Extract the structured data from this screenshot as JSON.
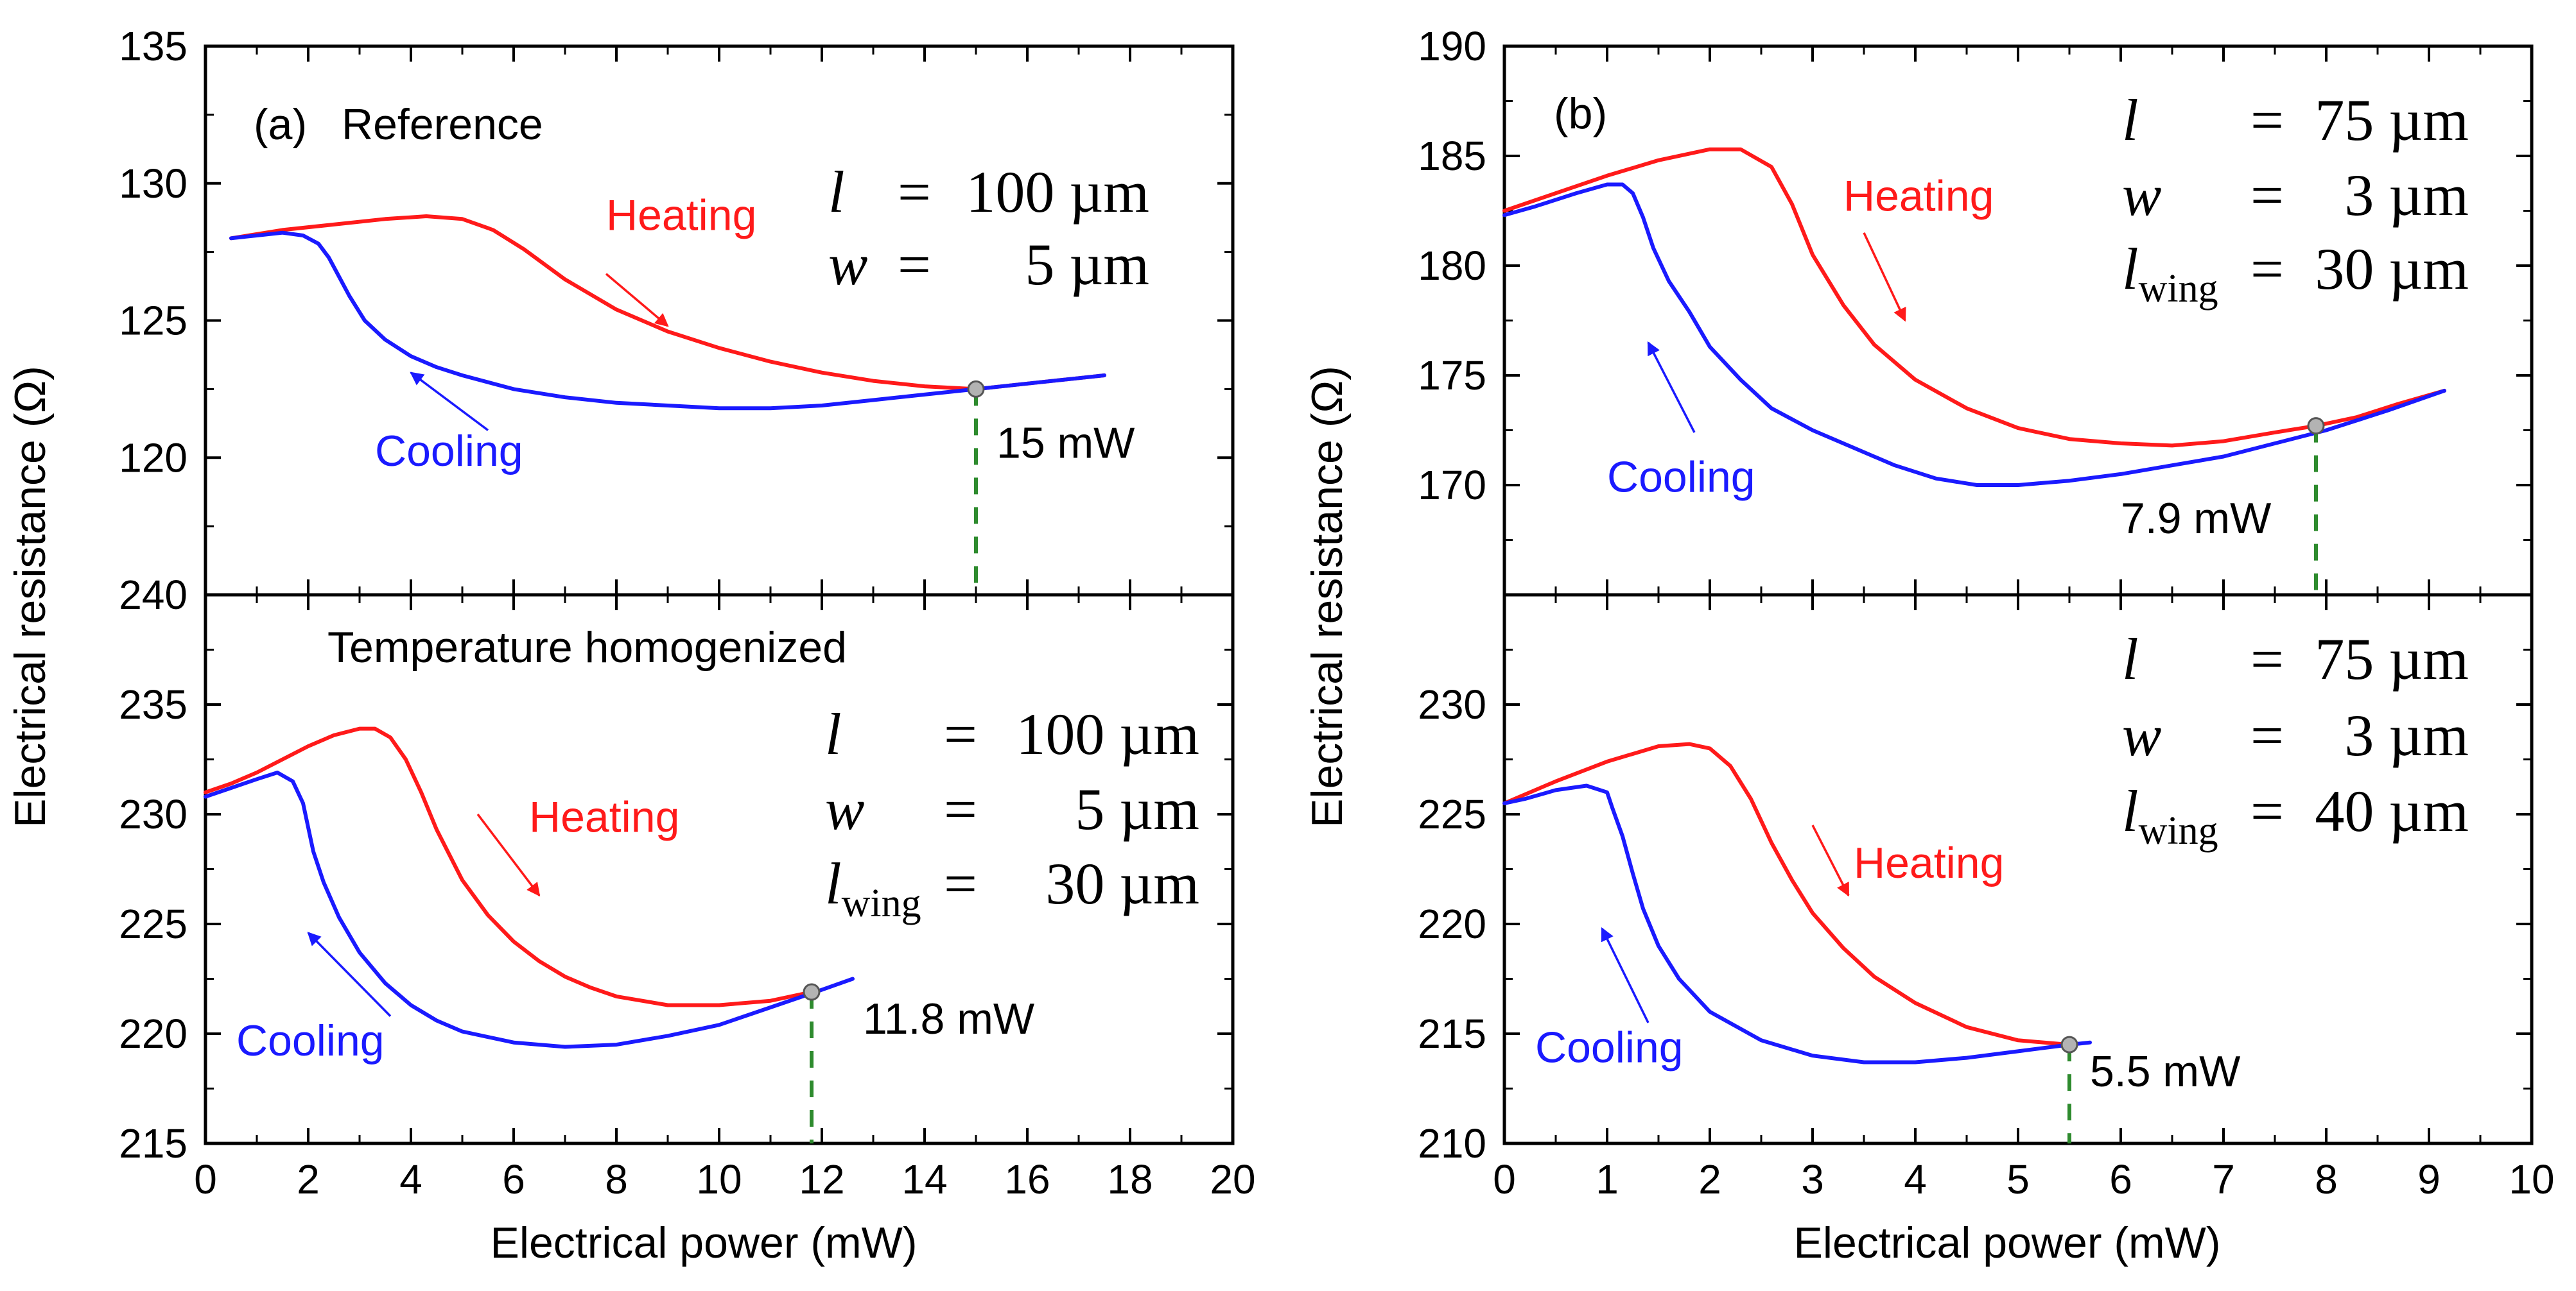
{
  "chart_data": {
    "xaxis_title": "Electrical power (mW)",
    "yaxis_title": "Electrical resistance (Ω)",
    "colors": {
      "heating": "#ff1a1a",
      "cooling": "#1a1aff",
      "threshold_line": "#2e8b2e",
      "marker": "#b3b3b3"
    },
    "columns": [
      {
        "type": "line",
        "panel_label": "(a)",
        "xlim": [
          0,
          20
        ],
        "xticks": [
          0,
          2,
          4,
          6,
          8,
          10,
          12,
          14,
          16,
          18,
          20
        ],
        "xtick_labels": [
          "0",
          "2",
          "4",
          "6",
          "8",
          "10",
          "12",
          "14",
          "16",
          "18",
          "20"
        ],
        "panels": [
          {
            "title": "Reference",
            "ylim": [
              115,
              135
            ],
            "yticks": [
              120,
              125,
              130,
              135
            ],
            "ytick_labels": [
              "120",
              "125",
              "130",
              "135"
            ],
            "params": [
              {
                "sym": "l",
                "sub": "",
                "eq": "=",
                "val": "100 µm"
              },
              {
                "sym": "w",
                "sub": "",
                "eq": "=",
                "val": "5 µm"
              }
            ],
            "series": [
              {
                "name": "Heating",
                "color": "#ff1a1a",
                "x": [
                  0.5,
                  1.5,
                  2.5,
                  3.5,
                  4.3,
                  5.0,
                  5.6,
                  6.2,
                  7.0,
                  8.0,
                  9.0,
                  10.0,
                  11.0,
                  12.0,
                  13.0,
                  14.0,
                  15.0,
                  16.0,
                  17.0,
                  17.5
                ],
                "y": [
                  128.0,
                  128.3,
                  128.5,
                  128.7,
                  128.8,
                  128.7,
                  128.3,
                  127.6,
                  126.5,
                  125.4,
                  124.6,
                  124.0,
                  123.5,
                  123.1,
                  122.8,
                  122.6,
                  122.5,
                  122.7,
                  122.9,
                  123.0
                ]
              },
              {
                "name": "Cooling",
                "color": "#1a1aff",
                "x": [
                  17.5,
                  17.0,
                  16.0,
                  15.0,
                  14.0,
                  13.0,
                  12.0,
                  11.0,
                  10.0,
                  9.0,
                  8.0,
                  7.0,
                  6.0,
                  5.0,
                  4.5,
                  4.0,
                  3.5,
                  3.1,
                  2.8,
                  2.6,
                  2.4,
                  2.2,
                  1.9,
                  1.5,
                  1.0,
                  0.5
                ],
                "y": [
                  123.0,
                  122.9,
                  122.7,
                  122.5,
                  122.3,
                  122.1,
                  121.9,
                  121.8,
                  121.8,
                  121.9,
                  122.0,
                  122.2,
                  122.5,
                  123.0,
                  123.3,
                  123.7,
                  124.3,
                  125.0,
                  125.9,
                  126.6,
                  127.3,
                  127.8,
                  128.1,
                  128.2,
                  128.1,
                  128.0
                ]
              }
            ],
            "labels": [
              {
                "text": "Heating",
                "color": "#ff1a1a",
                "x": 7.8,
                "y": 128.3
              },
              {
                "text": "Cooling",
                "color": "#1a1aff",
                "x": 3.3,
                "y": 119.7
              }
            ],
            "arrows": [
              {
                "color": "#ff1a1a",
                "x1": 7.8,
                "y1": 126.7,
                "x2": 9.0,
                "y2": 124.8
              },
              {
                "color": "#1a1aff",
                "x1": 5.5,
                "y1": 121.0,
                "x2": 4.0,
                "y2": 123.1
              }
            ],
            "threshold": {
              "x": 15,
              "y": 122.5,
              "label": "15 mW",
              "label_x": 15.4,
              "label_y": 120.0
            }
          },
          {
            "title": "Temperature homogenized",
            "ylim": [
              215,
              240
            ],
            "yticks": [
              215,
              220,
              225,
              230,
              235,
              240
            ],
            "ytick_labels": [
              "215",
              "220",
              "225",
              "230",
              "235",
              "240"
            ],
            "params": [
              {
                "sym": "l",
                "sub": "",
                "eq": "=",
                "val": "100 µm"
              },
              {
                "sym": "w",
                "sub": "",
                "eq": "=",
                "val": "5 µm"
              },
              {
                "sym": "l",
                "sub": "wing",
                "eq": "=",
                "val": "30 µm"
              }
            ],
            "series": [
              {
                "name": "Heating",
                "color": "#ff1a1a",
                "x": [
                  0,
                  0.5,
                  1.0,
                  1.5,
                  2.0,
                  2.5,
                  3.0,
                  3.3,
                  3.6,
                  3.9,
                  4.2,
                  4.5,
                  5.0,
                  5.5,
                  6.0,
                  6.5,
                  7.0,
                  7.5,
                  8.0,
                  9.0,
                  10.0,
                  11.0,
                  11.8
                ],
                "y": [
                  231.0,
                  231.4,
                  231.9,
                  232.5,
                  233.1,
                  233.6,
                  233.9,
                  233.9,
                  233.5,
                  232.5,
                  231.0,
                  229.3,
                  227.0,
                  225.4,
                  224.2,
                  223.3,
                  222.6,
                  222.1,
                  221.7,
                  221.3,
                  221.3,
                  221.5,
                  221.9
                ]
              },
              {
                "name": "Cooling",
                "color": "#1a1aff",
                "x": [
                  12.6,
                  12.0,
                  11.0,
                  10.0,
                  9.0,
                  8.0,
                  7.0,
                  6.0,
                  5.0,
                  4.5,
                  4.0,
                  3.5,
                  3.0,
                  2.6,
                  2.3,
                  2.1,
                  2.0,
                  1.9,
                  1.7,
                  1.4,
                  1.0,
                  0.5,
                  0
                ],
                "y": [
                  222.5,
                  222.0,
                  221.2,
                  220.4,
                  219.9,
                  219.5,
                  219.4,
                  219.6,
                  220.1,
                  220.6,
                  221.3,
                  222.3,
                  223.7,
                  225.3,
                  226.9,
                  228.3,
                  229.4,
                  230.5,
                  231.5,
                  231.9,
                  231.6,
                  231.2,
                  230.8
                ]
              }
            ],
            "labels": [
              {
                "text": "Heating",
                "color": "#ff1a1a",
                "x": 6.3,
                "y": 229.2
              },
              {
                "text": "Cooling",
                "color": "#1a1aff",
                "x": 0.6,
                "y": 219.0
              }
            ],
            "arrows": [
              {
                "color": "#ff1a1a",
                "x1": 5.3,
                "y1": 230.0,
                "x2": 6.5,
                "y2": 226.3
              },
              {
                "color": "#1a1aff",
                "x1": 3.6,
                "y1": 220.8,
                "x2": 2.0,
                "y2": 224.6
              }
            ],
            "threshold": {
              "x": 11.8,
              "y": 221.9,
              "label": "11.8 mW",
              "label_x": 12.8,
              "label_y": 220.0
            }
          }
        ]
      },
      {
        "type": "line",
        "panel_label": "(b)",
        "xlim": [
          0,
          10
        ],
        "xticks": [
          0,
          1,
          2,
          3,
          4,
          5,
          6,
          7,
          8,
          9,
          10
        ],
        "xtick_labels": [
          "0",
          "1",
          "2",
          "3",
          "4",
          "5",
          "6",
          "7",
          "8",
          "9",
          "10"
        ],
        "panels": [
          {
            "title": "",
            "ylim": [
              165,
              190
            ],
            "yticks": [
              170,
              175,
              180,
              185,
              190
            ],
            "ytick_labels": [
              "170",
              "175",
              "180",
              "185",
              "190"
            ],
            "params": [
              {
                "sym": "l",
                "sub": "",
                "eq": "=",
                "val": "75 µm"
              },
              {
                "sym": "w",
                "sub": "",
                "eq": "=",
                "val": "3 µm"
              },
              {
                "sym": "l",
                "sub": "wing",
                "eq": "=",
                "val": "30 µm"
              }
            ],
            "series": [
              {
                "name": "Heating",
                "color": "#ff1a1a",
                "x": [
                  0,
                  0.5,
                  1.0,
                  1.5,
                  2.0,
                  2.3,
                  2.6,
                  2.8,
                  3.0,
                  3.3,
                  3.6,
                  4.0,
                  4.5,
                  5.0,
                  5.5,
                  6.0,
                  6.5,
                  7.0,
                  7.5,
                  7.9,
                  8.3,
                  8.7,
                  9.15
                ],
                "y": [
                  182.5,
                  183.3,
                  184.1,
                  184.8,
                  185.3,
                  185.3,
                  184.5,
                  182.8,
                  180.5,
                  178.2,
                  176.4,
                  174.8,
                  173.5,
                  172.6,
                  172.1,
                  171.9,
                  171.8,
                  172.0,
                  172.4,
                  172.7,
                  173.1,
                  173.7,
                  174.3
                ]
              },
              {
                "name": "Cooling",
                "color": "#1a1aff",
                "x": [
                  9.15,
                  8.6,
                  8.0,
                  7.5,
                  7.0,
                  6.5,
                  6.0,
                  5.5,
                  5.0,
                  4.6,
                  4.2,
                  3.8,
                  3.4,
                  3.0,
                  2.6,
                  2.3,
                  2.0,
                  1.8,
                  1.6,
                  1.45,
                  1.35,
                  1.25,
                  1.15,
                  1.0,
                  0.7,
                  0.3,
                  0
                ],
                "y": [
                  174.3,
                  173.4,
                  172.5,
                  171.9,
                  171.3,
                  170.9,
                  170.5,
                  170.2,
                  170.0,
                  170.0,
                  170.3,
                  170.9,
                  171.7,
                  172.5,
                  173.5,
                  174.8,
                  176.3,
                  177.9,
                  179.3,
                  180.8,
                  182.2,
                  183.3,
                  183.7,
                  183.7,
                  183.3,
                  182.7,
                  182.3
                ]
              }
            ],
            "labels": [
              {
                "text": "Heating",
                "color": "#ff1a1a",
                "x": 3.3,
                "y": 182.5
              },
              {
                "text": "Cooling",
                "color": "#1a1aff",
                "x": 1.0,
                "y": 169.7
              }
            ],
            "arrows": [
              {
                "color": "#ff1a1a",
                "x1": 3.5,
                "y1": 181.5,
                "x2": 3.9,
                "y2": 177.5
              },
              {
                "color": "#1a1aff",
                "x1": 1.85,
                "y1": 172.4,
                "x2": 1.4,
                "y2": 176.5
              }
            ],
            "threshold": {
              "x": 7.9,
              "y": 172.7,
              "label": "7.9 mW",
              "label_x": 6.0,
              "label_y": 167.8
            }
          },
          {
            "title": "",
            "ylim": [
              210,
              235
            ],
            "yticks": [
              210,
              215,
              220,
              225,
              230
            ],
            "ytick_labels": [
              "210",
              "215",
              "220",
              "225",
              "230"
            ],
            "params": [
              {
                "sym": "l",
                "sub": "",
                "eq": "=",
                "val": "75 µm"
              },
              {
                "sym": "w",
                "sub": "",
                "eq": "=",
                "val": "3 µm"
              },
              {
                "sym": "l",
                "sub": "wing",
                "eq": "=",
                "val": "40 µm"
              }
            ],
            "series": [
              {
                "name": "Heating",
                "color": "#ff1a1a",
                "x": [
                  0,
                  0.5,
                  1.0,
                  1.5,
                  1.8,
                  2.0,
                  2.2,
                  2.4,
                  2.6,
                  2.8,
                  3.0,
                  3.3,
                  3.6,
                  4.0,
                  4.5,
                  5.0,
                  5.5
                ],
                "y": [
                  225.5,
                  226.5,
                  227.4,
                  228.1,
                  228.2,
                  228.0,
                  227.2,
                  225.7,
                  223.7,
                  222.0,
                  220.5,
                  218.9,
                  217.6,
                  216.4,
                  215.3,
                  214.7,
                  214.5
                ]
              },
              {
                "name": "Cooling",
                "color": "#1a1aff",
                "x": [
                  5.7,
                  5.5,
                  5.0,
                  4.5,
                  4.0,
                  3.5,
                  3.0,
                  2.5,
                  2.0,
                  1.7,
                  1.5,
                  1.35,
                  1.25,
                  1.15,
                  1.05,
                  1.0,
                  0.8,
                  0.5,
                  0.2,
                  0
                ],
                "y": [
                  214.6,
                  214.5,
                  214.2,
                  213.9,
                  213.7,
                  213.7,
                  214.0,
                  214.7,
                  216.0,
                  217.5,
                  219.0,
                  220.7,
                  222.3,
                  224.0,
                  225.3,
                  226.0,
                  226.3,
                  226.1,
                  225.7,
                  225.5
                ]
              }
            ],
            "labels": [
              {
                "text": "Heating",
                "color": "#ff1a1a",
                "x": 3.4,
                "y": 222.1
              },
              {
                "text": "Cooling",
                "color": "#1a1aff",
                "x": 0.3,
                "y": 213.7
              }
            ],
            "arrows": [
              {
                "color": "#ff1a1a",
                "x1": 3.0,
                "y1": 224.5,
                "x2": 3.35,
                "y2": 221.3
              },
              {
                "color": "#1a1aff",
                "x1": 1.4,
                "y1": 215.5,
                "x2": 0.95,
                "y2": 219.8
              }
            ],
            "threshold": {
              "x": 5.5,
              "y": 214.5,
              "label": "5.5 mW",
              "label_x": 5.7,
              "label_y": 212.6
            }
          }
        ]
      }
    ]
  }
}
